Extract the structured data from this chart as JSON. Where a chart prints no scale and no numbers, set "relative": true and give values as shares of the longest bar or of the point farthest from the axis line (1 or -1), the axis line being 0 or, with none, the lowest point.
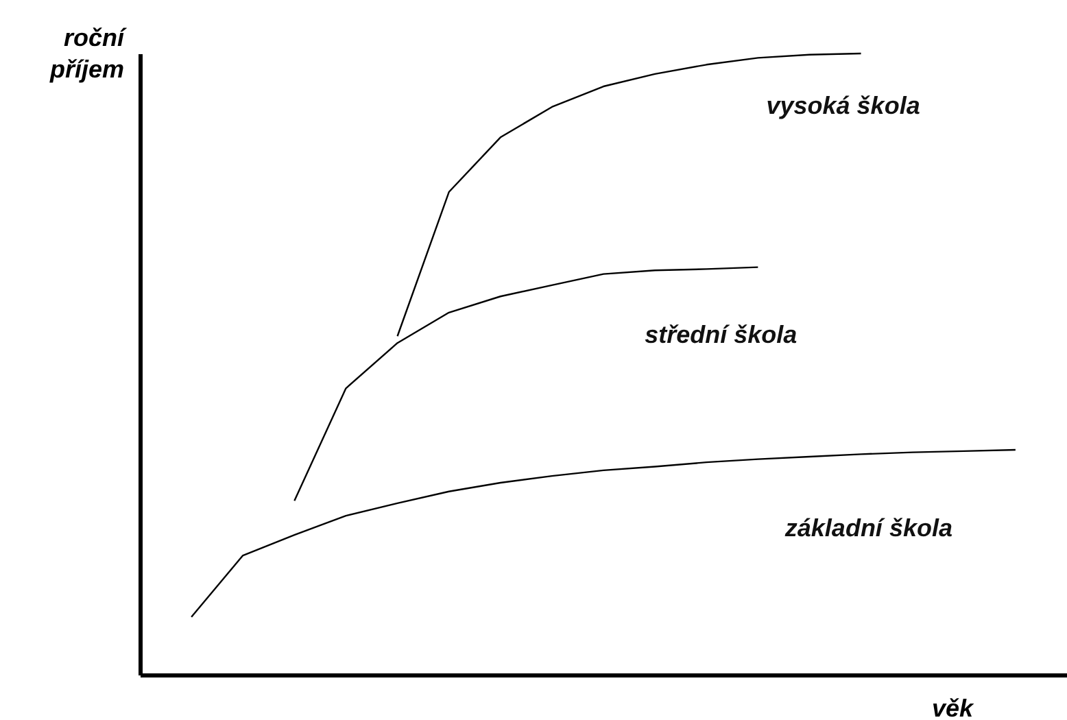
{
  "chart_data": {
    "type": "line",
    "relative": true,
    "xlabel": "věk",
    "ylabel": "roční příjem",
    "tick_labels": false,
    "marker": "none",
    "line_style": "solid",
    "categories": [
      null,
      null,
      null,
      null,
      null,
      null,
      null,
      null,
      null,
      null,
      null,
      null,
      null,
      null,
      null,
      null,
      null
    ],
    "series": [
      {
        "name": "vysoká škola",
        "color": "#000000",
        "values": [
          null,
          null,
          null,
          null,
          0.545,
          0.777,
          0.865,
          0.914,
          0.947,
          0.967,
          0.982,
          0.993,
          0.998,
          1.0,
          null,
          null,
          null
        ]
      },
      {
        "name": "střední škola",
        "color": "#000000",
        "values": [
          null,
          null,
          0.28,
          0.461,
          0.534,
          0.583,
          0.609,
          0.627,
          0.645,
          0.651,
          0.653,
          0.656,
          null,
          null,
          null,
          null,
          null
        ]
      },
      {
        "name": "základní škola",
        "color": "#000000",
        "values": [
          0.093,
          0.192,
          0.225,
          0.256,
          0.276,
          0.295,
          0.309,
          0.32,
          0.329,
          0.335,
          0.342,
          0.347,
          0.351,
          0.355,
          0.358,
          0.36,
          0.362
        ]
      }
    ]
  }
}
